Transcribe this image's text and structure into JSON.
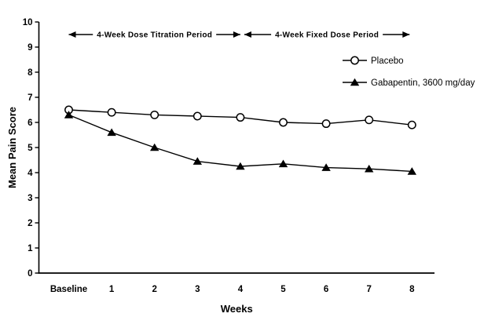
{
  "figure": {
    "background": "#ffffff",
    "ink_color": "#000000"
  },
  "chart_data": {
    "type": "line",
    "title": "",
    "xlabel": "Weeks",
    "ylabel": "Mean Pain Score",
    "categories": [
      "Baseline",
      "1",
      "2",
      "3",
      "4",
      "5",
      "6",
      "7",
      "8"
    ],
    "ylim": [
      0,
      10
    ],
    "ytick_step": 1,
    "grid": false,
    "legend_position": "upper-right",
    "series": [
      {
        "name": "Placebo",
        "marker": "open-circle",
        "color": "#000000",
        "values": [
          6.5,
          6.4,
          6.3,
          6.25,
          6.2,
          6.0,
          5.95,
          6.1,
          5.9
        ]
      },
      {
        "name": "Gabapentin, 3600 mg/day",
        "marker": "filled-triangle",
        "color": "#000000",
        "values": [
          6.3,
          5.6,
          5.0,
          4.45,
          4.25,
          4.35,
          4.2,
          4.15,
          4.05
        ]
      }
    ],
    "annotations": [
      {
        "label": "4-Week Dose Titration Period",
        "from_category": "Baseline",
        "to_category": "4",
        "style": "double-arrow"
      },
      {
        "label": "4-Week Fixed Dose Period",
        "from_category": "4",
        "to_category": "8",
        "style": "double-arrow"
      }
    ]
  }
}
